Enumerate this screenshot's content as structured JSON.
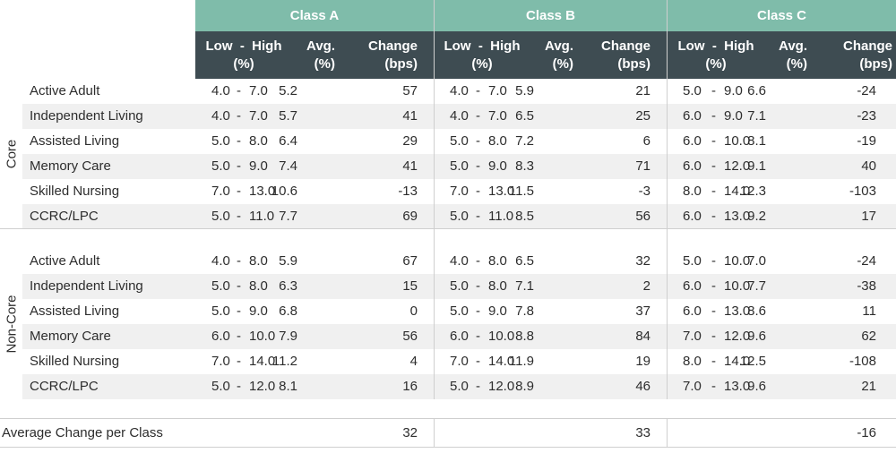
{
  "header": {
    "classes": [
      "Class A",
      "Class B",
      "Class C"
    ],
    "col_range_line1": "Low  -  High",
    "col_range_line2": "(%)",
    "col_avg_line1": "Avg.",
    "col_avg_line2": "(%)",
    "col_change_line1": "Change",
    "col_change_line2": "(bps)"
  },
  "groups": [
    {
      "label": "Core",
      "rows": [
        {
          "name": "Active Adult",
          "a": [
            "4.0",
            "7.0",
            "5.2",
            "57"
          ],
          "b": [
            "4.0",
            "7.0",
            "5.9",
            "21"
          ],
          "c": [
            "5.0",
            "9.0",
            "6.6",
            "-24"
          ]
        },
        {
          "name": "Independent Living",
          "a": [
            "4.0",
            "7.0",
            "5.7",
            "41"
          ],
          "b": [
            "4.0",
            "7.0",
            "6.5",
            "25"
          ],
          "c": [
            "6.0",
            "9.0",
            "7.1",
            "-23"
          ]
        },
        {
          "name": "Assisted Living",
          "a": [
            "5.0",
            "8.0",
            "6.4",
            "29"
          ],
          "b": [
            "5.0",
            "8.0",
            "7.2",
            "6"
          ],
          "c": [
            "6.0",
            "10.0",
            "8.1",
            "-19"
          ]
        },
        {
          "name": "Memory Care",
          "a": [
            "5.0",
            "9.0",
            "7.4",
            "41"
          ],
          "b": [
            "5.0",
            "9.0",
            "8.3",
            "71"
          ],
          "c": [
            "6.0",
            "12.0",
            "9.1",
            "40"
          ]
        },
        {
          "name": "Skilled Nursing",
          "a": [
            "7.0",
            "13.0",
            "10.6",
            "-13"
          ],
          "b": [
            "7.0",
            "13.0",
            "11.5",
            "-3"
          ],
          "c": [
            "8.0",
            "14.0",
            "12.3",
            "-103"
          ]
        },
        {
          "name": "CCRC/LPC",
          "a": [
            "5.0",
            "11.0",
            "7.7",
            "69"
          ],
          "b": [
            "5.0",
            "11.0",
            "8.5",
            "56"
          ],
          "c": [
            "6.0",
            "13.0",
            "9.2",
            "17"
          ]
        }
      ]
    },
    {
      "label": "Non-Core",
      "rows": [
        {
          "name": "Active Adult",
          "a": [
            "4.0",
            "8.0",
            "5.9",
            "67"
          ],
          "b": [
            "4.0",
            "8.0",
            "6.5",
            "32"
          ],
          "c": [
            "5.0",
            "10.0",
            "7.0",
            "-24"
          ]
        },
        {
          "name": "Independent Living",
          "a": [
            "5.0",
            "8.0",
            "6.3",
            "15"
          ],
          "b": [
            "5.0",
            "8.0",
            "7.1",
            "2"
          ],
          "c": [
            "6.0",
            "10.0",
            "7.7",
            "-38"
          ]
        },
        {
          "name": "Assisted Living",
          "a": [
            "5.0",
            "9.0",
            "6.8",
            "0"
          ],
          "b": [
            "5.0",
            "9.0",
            "7.8",
            "37"
          ],
          "c": [
            "6.0",
            "13.0",
            "8.6",
            "11"
          ]
        },
        {
          "name": "Memory Care",
          "a": [
            "6.0",
            "10.0",
            "7.9",
            "56"
          ],
          "b": [
            "6.0",
            "10.0",
            "8.8",
            "84"
          ],
          "c": [
            "7.0",
            "12.0",
            "9.6",
            "62"
          ]
        },
        {
          "name": "Skilled Nursing",
          "a": [
            "7.0",
            "14.0",
            "11.2",
            "4"
          ],
          "b": [
            "7.0",
            "14.0",
            "11.9",
            "19"
          ],
          "c": [
            "8.0",
            "14.0",
            "12.5",
            "-108"
          ]
        },
        {
          "name": "CCRC/LPC",
          "a": [
            "5.0",
            "12.0",
            "8.1",
            "16"
          ],
          "b": [
            "5.0",
            "12.0",
            "8.9",
            "46"
          ],
          "c": [
            "7.0",
            "13.0",
            "9.6",
            "21"
          ]
        }
      ]
    }
  ],
  "average_change": {
    "label": "Average Change per Class",
    "values": [
      "32",
      "33",
      "-16"
    ]
  },
  "colors": {
    "class_header": "#7fbcaa",
    "column_header": "#3e4c52",
    "row_shade": "#f0f0f0",
    "grid_line": "#cfcfcf"
  }
}
